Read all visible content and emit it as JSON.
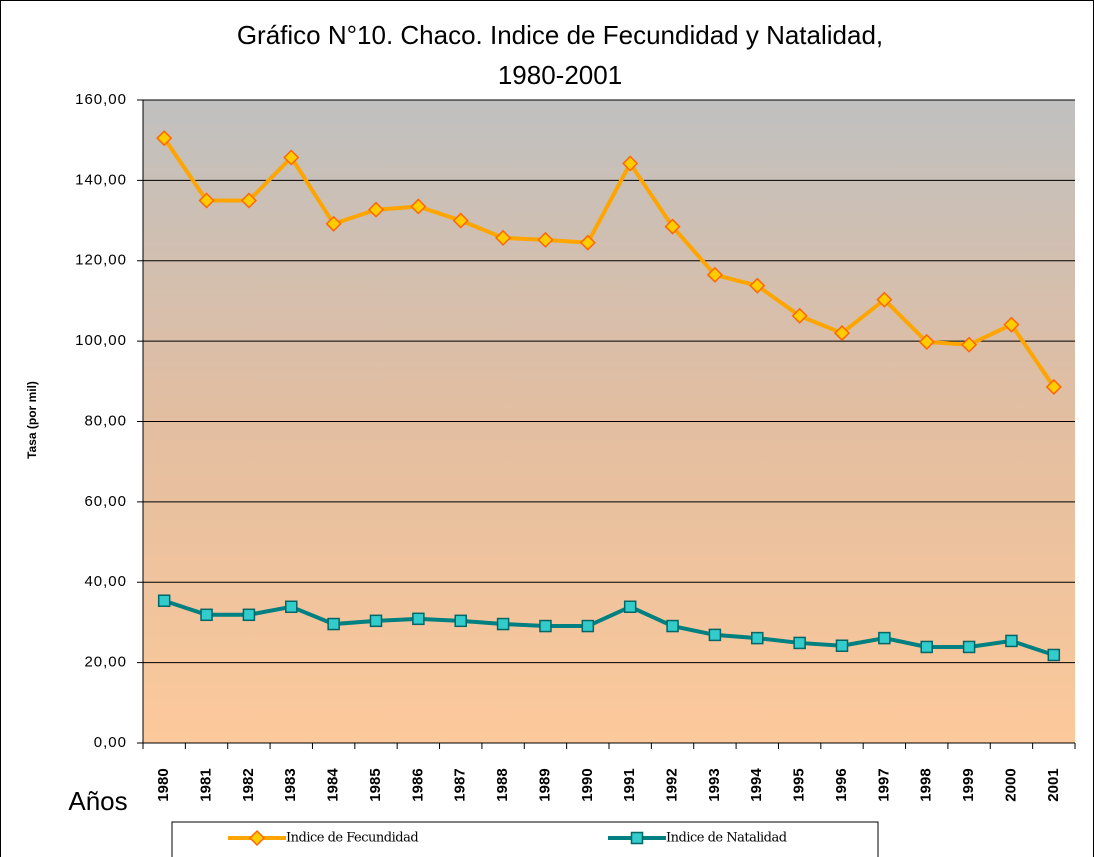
{
  "chart_data": {
    "type": "line",
    "title": [
      "Gráfico N°10. Chaco. Indice de Fecundidad y Natalidad,",
      "1980-2001"
    ],
    "y_label": "Tasa (por mil)",
    "x_label": "Años",
    "categories": [
      "1980",
      "1981",
      "1982",
      "1983",
      "1984",
      "1985",
      "1986",
      "1987",
      "1988",
      "1989",
      "1990",
      "1991",
      "1992",
      "1993",
      "1994",
      "1995",
      "1996",
      "1997",
      "1998",
      "1999",
      "2000",
      "2001"
    ],
    "series": [
      {
        "name": "Indice de Fecundidad",
        "color": "#ffa500",
        "marker": "diamond",
        "values": [
          150.5,
          135,
          135,
          145.7,
          129.2,
          132.7,
          133.5,
          130,
          125.7,
          125.2,
          124.5,
          144.2,
          128.5,
          116.5,
          113.8,
          106.3,
          102,
          110.3,
          99.8,
          99.1,
          104.1,
          88.6
        ]
      },
      {
        "name": "Indice de Natalidad",
        "color": "#008080",
        "marker": "square",
        "values": [
          35.4,
          31.9,
          31.9,
          33.9,
          29.6,
          30.4,
          30.9,
          30.4,
          29.6,
          29.1,
          29.1,
          33.9,
          29.1,
          26.9,
          26.1,
          24.9,
          24.2,
          26.1,
          23.9,
          23.9,
          25.4,
          21.9
        ]
      }
    ],
    "ylim": [
      0,
      160
    ],
    "yticks": [
      {
        "value": 0,
        "label": "0,00"
      },
      {
        "value": 20,
        "label": "20,00"
      },
      {
        "value": 40,
        "label": "40,00"
      },
      {
        "value": 60,
        "label": "60,00"
      },
      {
        "value": 80,
        "label": "80,00"
      },
      {
        "value": 100,
        "label": "100,00"
      },
      {
        "value": 120,
        "label": "120,00"
      },
      {
        "value": 140,
        "label": "140,00"
      },
      {
        "value": 160,
        "label": "160,00"
      }
    ],
    "grid": true
  }
}
